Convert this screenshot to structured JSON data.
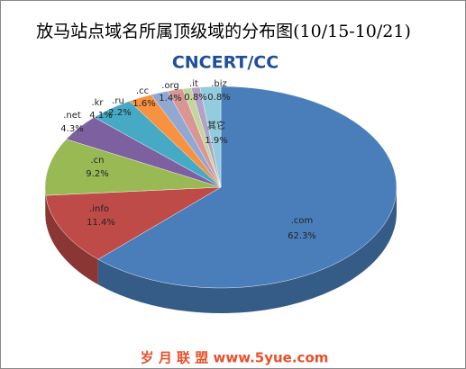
{
  "chart_data": {
    "type": "pie3d",
    "title": "放马站点域名所属顶级域的分布图(10/15-10/21)",
    "logo": "CNCERT/CC",
    "footer": "岁 月 联 盟  www.5yue.com",
    "categories": [
      ".com",
      ".info",
      ".cn",
      ".net",
      ".kr",
      ".ru",
      ".cc",
      ".org",
      ".it",
      ".biz",
      "其它"
    ],
    "values": [
      62.3,
      11.4,
      9.2,
      4.3,
      4.1,
      2.2,
      1.6,
      1.4,
      0.8,
      0.8,
      1.9
    ],
    "value_labels": [
      "62.3%",
      "11.4%",
      "9.2%",
      "4.3%",
      "4.1%",
      "2.2%",
      "1.6%",
      "1.4%",
      "0.8%",
      "0.8%",
      "1.9%"
    ],
    "colors": [
      "#4a7ebb",
      "#be4b48",
      "#98b954",
      "#7d60a0",
      "#46aac5",
      "#f69240",
      "#8fa8d4",
      "#d99694",
      "#c3d69b",
      "#b3a2c7",
      "#93cddd"
    ]
  }
}
